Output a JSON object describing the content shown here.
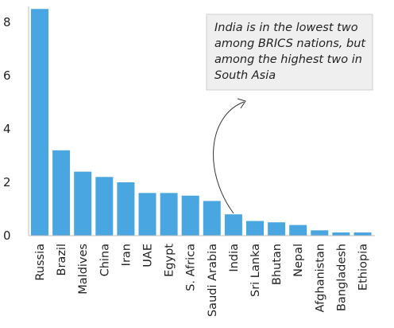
{
  "chart_data": {
    "type": "bar",
    "categories": [
      "Russia",
      "Brazil",
      "Maldives",
      "China",
      "Iran",
      "UAE",
      "Egypt",
      "S. Africa",
      "Saudi Arabia",
      "India",
      "Sri Lanka",
      "Bhutan",
      "Nepal",
      "Afghanistan",
      "Bangladesh",
      "Ethiopia"
    ],
    "values": [
      8.5,
      3.2,
      2.4,
      2.2,
      2.0,
      1.6,
      1.6,
      1.5,
      1.3,
      0.8,
      0.55,
      0.5,
      0.4,
      0.2,
      0.12,
      0.12
    ],
    "yticks": [
      "0",
      "2",
      "4",
      "6",
      "8"
    ],
    "ylim": [
      0,
      8.5
    ],
    "grid": false,
    "bar_color": "#4aa6e0",
    "annotation": {
      "lines": [
        "India is in the lowest two",
        "among BRICS nations, but",
        "among the highest two in",
        "South Asia"
      ],
      "target": "India"
    }
  }
}
